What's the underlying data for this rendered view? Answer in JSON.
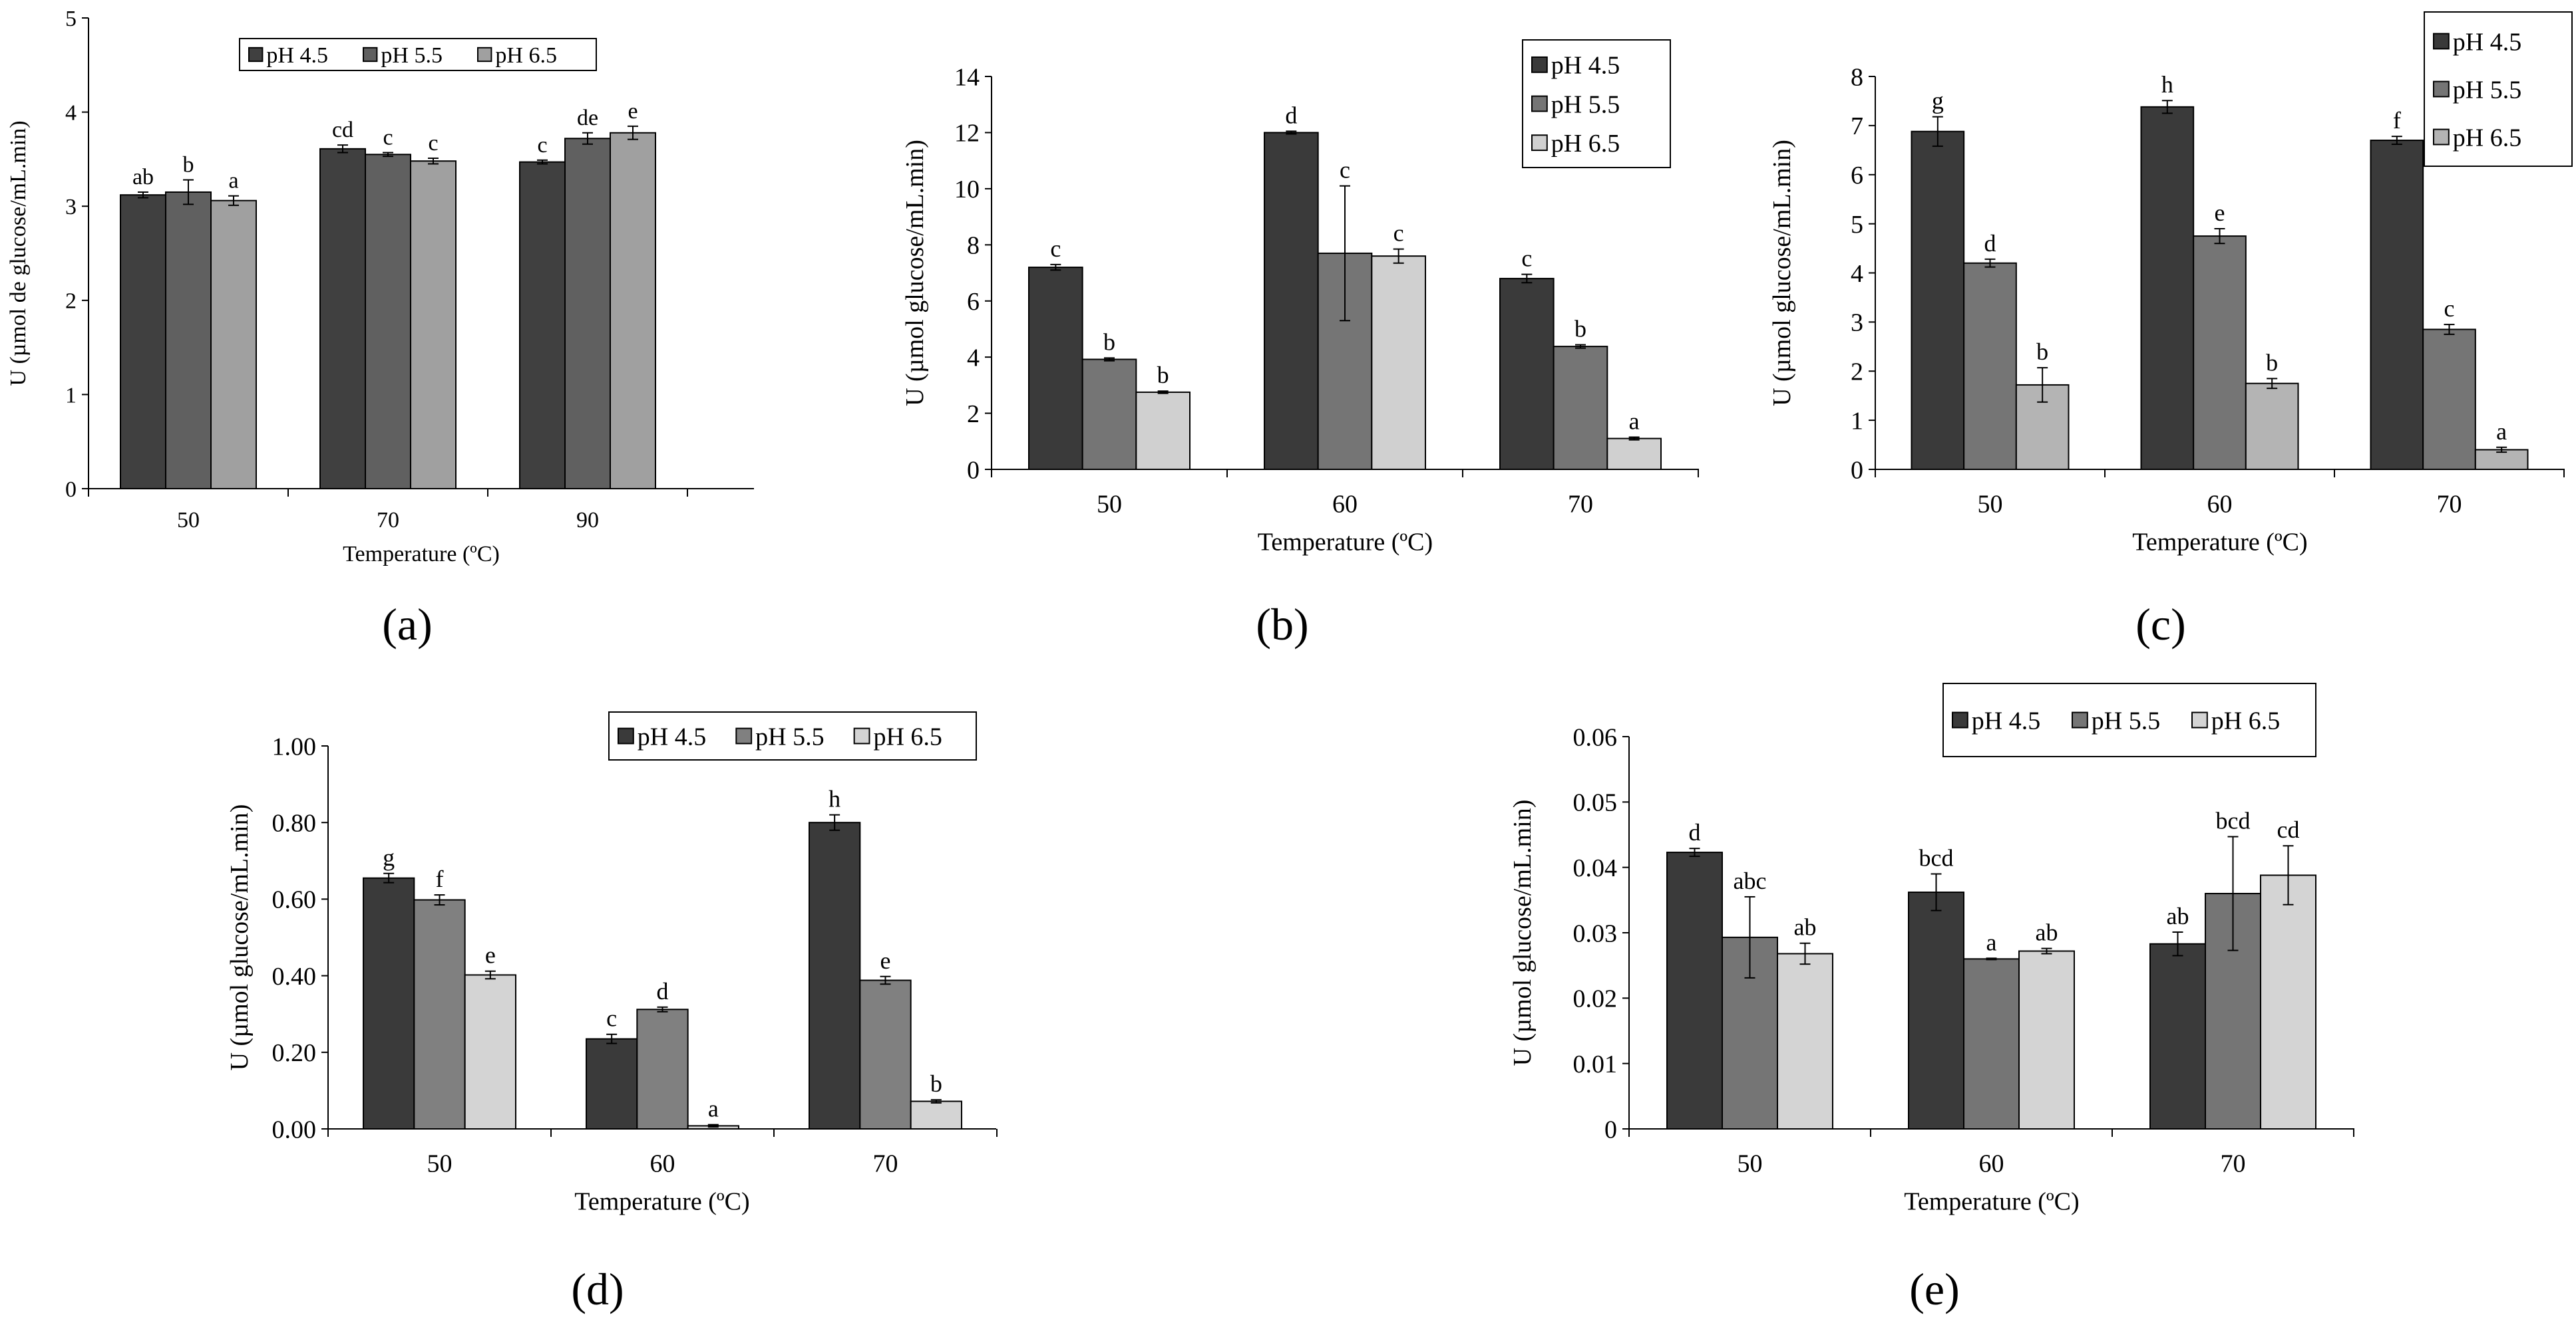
{
  "chart_data": [
    {
      "type": "bar",
      "panel_label": "(a)",
      "xlabel": "Temperature (ºC)",
      "ylabel": "U (µmol de glucose/mL.min)",
      "ylim": [
        0,
        5
      ],
      "y_ticks": [
        "0",
        "1",
        "2",
        "3",
        "4",
        "5"
      ],
      "categories": [
        "50",
        "70",
        "90"
      ],
      "legend_position": "top",
      "series": [
        {
          "name": "pH 4.5",
          "color": "#404040",
          "values": [
            3.12,
            3.61,
            3.47
          ],
          "errors": [
            0.03,
            0.04,
            0.02
          ],
          "letters": [
            "ab",
            "cd",
            "c"
          ]
        },
        {
          "name": "pH 5.5",
          "color": "#606060",
          "values": [
            3.15,
            3.55,
            3.72
          ],
          "errors": [
            0.13,
            0.02,
            0.06
          ],
          "letters": [
            "b",
            "c",
            "de"
          ]
        },
        {
          "name": "pH 6.5",
          "color": "#a0a0a0",
          "values": [
            3.06,
            3.48,
            3.78
          ],
          "errors": [
            0.05,
            0.03,
            0.07
          ],
          "letters": [
            "a",
            "c",
            "e"
          ]
        }
      ]
    },
    {
      "type": "bar",
      "panel_label": "(b)",
      "xlabel": "Temperature (ºC)",
      "ylabel": "U (µmol glucose/mL.min)",
      "ylim": [
        0,
        14
      ],
      "y_ticks": [
        "0",
        "2",
        "4",
        "6",
        "8",
        "10",
        "12",
        "14"
      ],
      "categories": [
        "50",
        "60",
        "70"
      ],
      "legend_position": "top-right",
      "series": [
        {
          "name": "pH 4.5",
          "color": "#3a3a3a",
          "values": [
            7.2,
            12.0,
            6.8
          ],
          "errors": [
            0.1,
            0.05,
            0.15
          ],
          "letters": [
            "c",
            "d",
            "c"
          ]
        },
        {
          "name": "pH 5.5",
          "color": "#757575",
          "values": [
            3.92,
            7.7,
            4.38
          ],
          "errors": [
            0.05,
            2.4,
            0.06
          ],
          "letters": [
            "b",
            "c",
            "b"
          ]
        },
        {
          "name": "pH 6.5",
          "color": "#d0d0d0",
          "values": [
            2.75,
            7.6,
            1.1
          ],
          "errors": [
            0.04,
            0.25,
            0.05
          ],
          "letters": [
            "b",
            "c",
            "a"
          ]
        }
      ]
    },
    {
      "type": "bar",
      "panel_label": "(c)",
      "xlabel": "Temperature (ºC)",
      "ylabel": "U (µmol glucose/mL.min)",
      "ylim": [
        0,
        8
      ],
      "y_ticks": [
        "0",
        "1",
        "2",
        "3",
        "4",
        "5",
        "6",
        "7",
        "8"
      ],
      "categories": [
        "50",
        "60",
        "70"
      ],
      "legend_position": "top-right",
      "series": [
        {
          "name": "pH 4.5",
          "color": "#3a3a3a",
          "values": [
            6.88,
            7.38,
            6.7
          ],
          "errors": [
            0.3,
            0.13,
            0.08
          ],
          "letters": [
            "g",
            "h",
            "f"
          ]
        },
        {
          "name": "pH 5.5",
          "color": "#757575",
          "values": [
            4.2,
            4.75,
            2.85
          ],
          "errors": [
            0.08,
            0.15,
            0.1
          ],
          "letters": [
            "d",
            "e",
            "c"
          ]
        },
        {
          "name": "pH 6.5",
          "color": "#b4b4b4",
          "values": [
            1.72,
            1.75,
            0.4
          ],
          "errors": [
            0.35,
            0.1,
            0.05
          ],
          "letters": [
            "b",
            "b",
            "a"
          ]
        }
      ]
    },
    {
      "type": "bar",
      "panel_label": "(d)",
      "xlabel": "Temperature (ºC)",
      "ylabel": "U (µmol glucose/mL.min)",
      "ylim": [
        0,
        1.0
      ],
      "y_ticks": [
        "0.00",
        "0.20",
        "0.40",
        "0.60",
        "0.80",
        "1.00"
      ],
      "categories": [
        "50",
        "60",
        "70"
      ],
      "legend_position": "top-right",
      "series": [
        {
          "name": "pH 4.5",
          "color": "#3a3a3a",
          "values": [
            0.655,
            0.235,
            0.8
          ],
          "errors": [
            0.012,
            0.012,
            0.02
          ],
          "letters": [
            "g",
            "c",
            "h"
          ]
        },
        {
          "name": "pH 5.5",
          "color": "#808080",
          "values": [
            0.598,
            0.312,
            0.388
          ],
          "errors": [
            0.013,
            0.006,
            0.01
          ],
          "letters": [
            "f",
            "d",
            "e"
          ]
        },
        {
          "name": "pH 6.5",
          "color": "#d4d4d4",
          "values": [
            0.402,
            0.008,
            0.072
          ],
          "errors": [
            0.01,
            0.003,
            0.004
          ],
          "letters": [
            "e",
            "a",
            "b"
          ]
        }
      ]
    },
    {
      "type": "bar",
      "panel_label": "(e)",
      "xlabel": "Temperature (ºC)",
      "ylabel": "U (µmol glucose/mL.min)",
      "ylim": [
        0,
        0.06
      ],
      "y_ticks": [
        "0",
        "0.01",
        "0.02",
        "0.03",
        "0.04",
        "0.05",
        "0.06"
      ],
      "categories": [
        "50",
        "60",
        "70"
      ],
      "legend_position": "top",
      "series": [
        {
          "name": "pH 4.5",
          "color": "#3a3a3a",
          "values": [
            0.0423,
            0.0362,
            0.0283
          ],
          "errors": [
            0.0006,
            0.0028,
            0.0018
          ],
          "letters": [
            "d",
            "bcd",
            "ab"
          ]
        },
        {
          "name": "pH 5.5",
          "color": "#757575",
          "values": [
            0.0293,
            0.026,
            0.036
          ],
          "errors": [
            0.0062,
            0.0001,
            0.0087
          ],
          "letters": [
            "abc",
            "a",
            "bcd"
          ]
        },
        {
          "name": "pH 6.5",
          "color": "#d4d4d4",
          "values": [
            0.0268,
            0.0272,
            0.0388
          ],
          "errors": [
            0.0016,
            0.0004,
            0.0045
          ],
          "letters": [
            "ab",
            "ab",
            "cd"
          ]
        }
      ]
    }
  ]
}
